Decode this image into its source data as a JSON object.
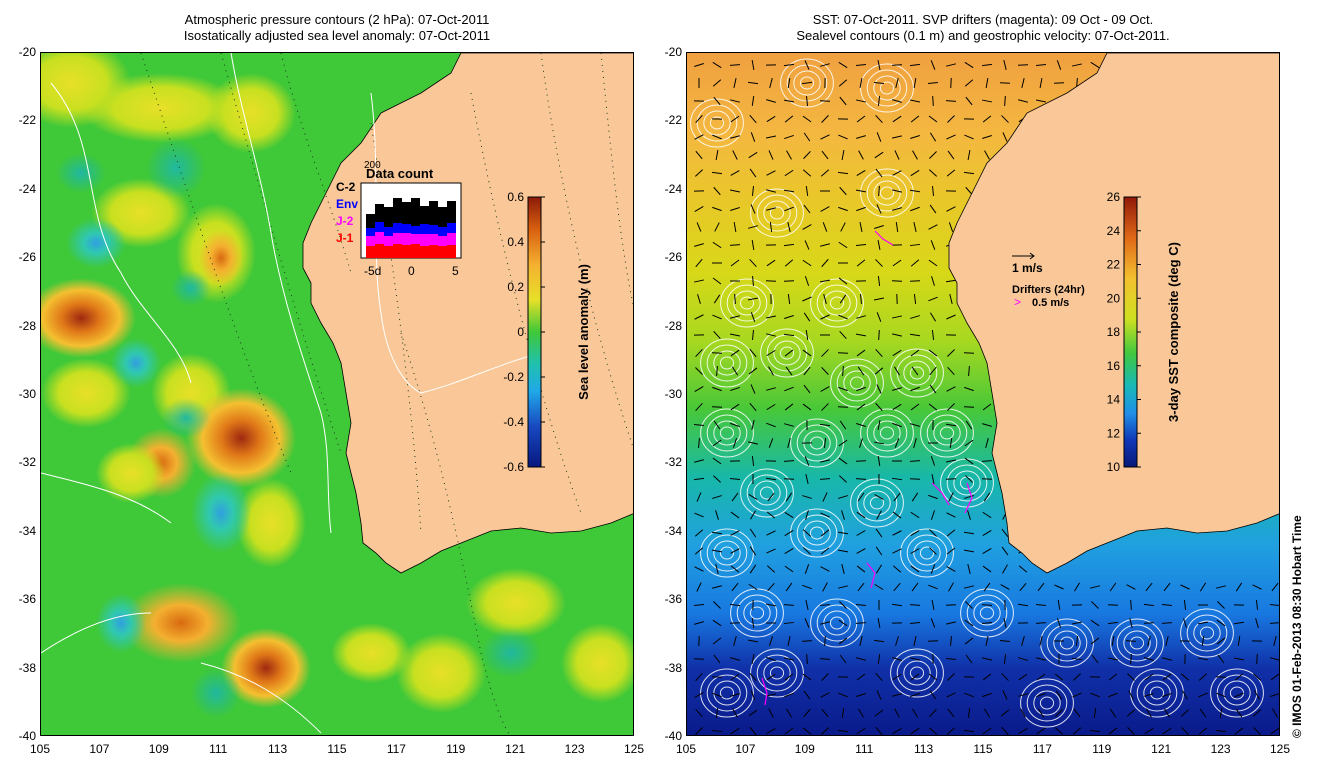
{
  "left_panel": {
    "title_line1": "Atmospheric pressure contours (2 hPa): 07-Oct-2011",
    "title_line2": "Isostatically adjusted sea level anomaly: 07-Oct-2011",
    "colorbar": {
      "label": "Sea level anomaly (m)",
      "ticks": [
        "0.6",
        "0.4",
        "0.2",
        "0",
        "-0.2",
        "-0.4",
        "-0.6"
      ]
    },
    "inset": {
      "title": "Data count",
      "legend": [
        {
          "label": "C-2",
          "color": "#000000"
        },
        {
          "label": "Env",
          "color": "#0000ff"
        },
        {
          "label": "J-2",
          "color": "#ff00ff"
        },
        {
          "label": "J-1",
          "color": "#ff0000"
        }
      ],
      "y_top_label": "200",
      "x_ticks": [
        "-5d",
        "0",
        "5"
      ]
    }
  },
  "right_panel": {
    "title_line1": "SST: 07-Oct-2011. SVP drifters (magenta): 09 Oct - 09 Oct.",
    "title_line2": "Sealevel contours (0.1 m) and geostrophic velocity: 07-Oct-2011.",
    "colorbar": {
      "label": "3-day SST composite (deg C)",
      "ticks": [
        "26",
        "24",
        "22",
        "20",
        "18",
        "16",
        "14",
        "12",
        "10"
      ]
    },
    "velocity_key": "1 m/s",
    "drifter_key_title": "Drifters (24hr)",
    "drifter_key_symbol": ">",
    "drifter_key_value": "0.5 m/s"
  },
  "y_axis_labels": [
    "-20",
    "-22",
    "-24",
    "-26",
    "-28",
    "-30",
    "-32",
    "-34",
    "-36",
    "-38",
    "-40"
  ],
  "x_axis_labels": [
    "105",
    "107",
    "109",
    "111",
    "113",
    "115",
    "117",
    "119",
    "121",
    "123",
    "125"
  ],
  "credit": "© IMOS 01-Feb-2013 08:30 Hobart Time",
  "colors": {
    "land": "#fac898",
    "sla_background": "#3fc838",
    "sst_warm": "#f0a040",
    "sst_cold": "#0a1a9a",
    "drifter": "#ff00ff"
  }
}
